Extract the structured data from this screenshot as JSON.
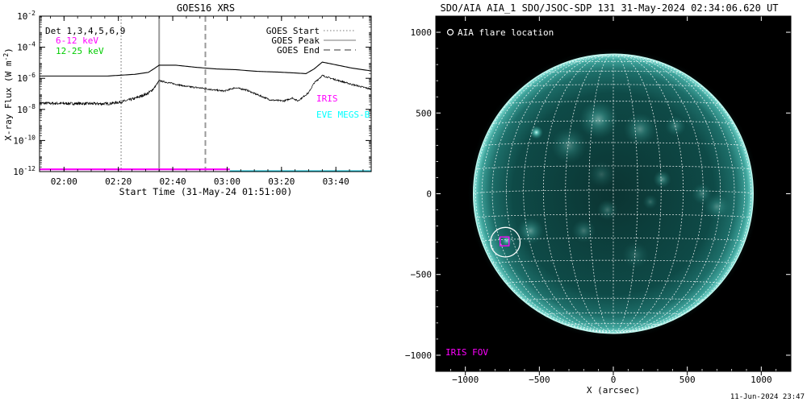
{
  "chart_data": [
    {
      "type": "line",
      "title": "GOES16 XRS",
      "xlabel": "Start Time (31-May-24 01:51:00)",
      "ylabel": "X-ray Flux (W m^-2)",
      "y_scale": "log",
      "x_unit": "minutes after 01:51:00",
      "xlim": [
        0,
        122
      ],
      "ylim": [
        1e-12,
        0.01
      ],
      "x_ticks": [
        {
          "t": 9,
          "label": "02:00"
        },
        {
          "t": 29,
          "label": "02:20"
        },
        {
          "t": 49,
          "label": "02:40"
        },
        {
          "t": 69,
          "label": "03:00"
        },
        {
          "t": 89,
          "label": "03:20"
        },
        {
          "t": 109,
          "label": "03:40"
        }
      ],
      "y_ticks": [
        {
          "v": 1e-12,
          "label": "10^-12"
        },
        {
          "v": 1e-10,
          "label": "10^-10"
        },
        {
          "v": 1e-08,
          "label": "10^-8"
        },
        {
          "v": 1e-06,
          "label": "10^-6"
        },
        {
          "v": 0.0001,
          "label": "10^-4"
        },
        {
          "v": 0.01,
          "label": "10^-2"
        }
      ],
      "det_label": "Det 1,3,4,5,6,9",
      "legend_left": [
        {
          "label": "6-12 keV",
          "color": "#ff00ff"
        },
        {
          "label": "12-25 keV",
          "color": "#00cc00"
        }
      ],
      "legend_right": [
        {
          "label": "GOES Start",
          "style": "dotted"
        },
        {
          "label": "GOES Peak",
          "style": "solid"
        },
        {
          "label": "GOES End",
          "style": "dashed"
        }
      ],
      "markers": {
        "goes_start": 30,
        "goes_peak": 44,
        "goes_end": 61
      },
      "series": [
        {
          "name": "GOES long",
          "color": "#000000",
          "points": [
            [
              0,
              1.4e-06
            ],
            [
              10,
              1.4e-06
            ],
            [
              25,
              1.4e-06
            ],
            [
              35,
              1.8e-06
            ],
            [
              40,
              2.4e-06
            ],
            [
              42,
              4e-06
            ],
            [
              44,
              7e-06
            ],
            [
              50,
              7e-06
            ],
            [
              58,
              5e-06
            ],
            [
              65,
              4e-06
            ],
            [
              72,
              3.6e-06
            ],
            [
              80,
              2.8e-06
            ],
            [
              88,
              2.5e-06
            ],
            [
              94,
              2.2e-06
            ],
            [
              98,
              2e-06
            ],
            [
              101,
              4e-06
            ],
            [
              104,
              1.1e-05
            ],
            [
              108,
              8e-06
            ],
            [
              115,
              4.5e-06
            ],
            [
              122,
              3e-06
            ]
          ]
        },
        {
          "name": "GOES short",
          "color": "#000000",
          "noise": true,
          "points": [
            [
              0,
              2.5e-08
            ],
            [
              10,
              2.4e-08
            ],
            [
              25,
              2.3e-08
            ],
            [
              30,
              3e-08
            ],
            [
              35,
              5e-08
            ],
            [
              40,
              1.1e-07
            ],
            [
              42,
              2.2e-07
            ],
            [
              44,
              7e-07
            ],
            [
              48,
              5e-07
            ],
            [
              54,
              3e-07
            ],
            [
              60,
              2.3e-07
            ],
            [
              64,
              1.8e-07
            ],
            [
              68,
              1.5e-07
            ],
            [
              72,
              2.5e-07
            ],
            [
              76,
              1.8e-07
            ],
            [
              80,
              9e-08
            ],
            [
              85,
              4e-08
            ],
            [
              90,
              3.5e-08
            ],
            [
              93,
              5.5e-08
            ],
            [
              95,
              3.5e-08
            ],
            [
              99,
              1.2e-07
            ],
            [
              101,
              5e-07
            ],
            [
              104,
              1.5e-06
            ],
            [
              108,
              9e-07
            ],
            [
              115,
              4e-07
            ],
            [
              122,
              2e-07
            ]
          ]
        },
        {
          "name": "",
          "color": "#ff00ff",
          "points": [
            [
              0,
              1.4e-12
            ],
            [
              70,
              1.4e-12
            ]
          ]
        },
        {
          "name": "",
          "color": "#00bcd4",
          "points": [
            [
              70,
              1.05e-12
            ],
            [
              122,
              1.05e-12
            ]
          ]
        }
      ],
      "overlay_labels": [
        {
          "text": "IRIS",
          "color": "#ff00ff"
        },
        {
          "text": "EVE MEGS-B",
          "color": "#00ffff"
        }
      ]
    },
    {
      "type": "image",
      "title": "SDO/AIA AIA_1 SDO/JSOC-SDP 131 31-May-2024 02:34:06.620 UT",
      "xlabel": "X (arcsec)",
      "ylabel": "",
      "xlim": [
        -1200,
        1200
      ],
      "ylim": [
        -1100,
        1100
      ],
      "x_ticks": [
        -1000,
        -500,
        0,
        500,
        1000
      ],
      "y_ticks": [
        -1000,
        -500,
        0,
        500,
        1000
      ],
      "solar_radius_arcsec": 945,
      "grid_spacing_deg": 10,
      "b0_deg": -1.5,
      "legend_text": "AIA flare location",
      "iris_fov_label": "IRIS FOV",
      "flare_location_arcsec": [
        -730,
        -300
      ],
      "iris_fov_arcsec": {
        "x": -735,
        "y": -295,
        "w": 60,
        "h": 60
      },
      "colors": {
        "disk": "#0c4543",
        "limb": "#7adcd2",
        "grid": "#ffffff",
        "iris": "#ff00ff",
        "circle": "#ffffff"
      },
      "active_regions": [
        {
          "x": -520,
          "y": 380,
          "r": 45,
          "strength": 1.0
        },
        {
          "x": -100,
          "y": 460,
          "r": 130,
          "strength": 0.5
        },
        {
          "x": 180,
          "y": 400,
          "r": 110,
          "strength": 0.4
        },
        {
          "x": -300,
          "y": 300,
          "r": 120,
          "strength": 0.35
        },
        {
          "x": 330,
          "y": 90,
          "r": 60,
          "strength": 0.45
        },
        {
          "x": -560,
          "y": -230,
          "r": 90,
          "strength": 0.45
        },
        {
          "x": -720,
          "y": -290,
          "r": 40,
          "strength": 0.8
        },
        {
          "x": -200,
          "y": -230,
          "r": 80,
          "strength": 0.3
        },
        {
          "x": -40,
          "y": -100,
          "r": 70,
          "strength": 0.3
        },
        {
          "x": 700,
          "y": -80,
          "r": 90,
          "strength": 0.35
        },
        {
          "x": 600,
          "y": 0,
          "r": 70,
          "strength": 0.3
        },
        {
          "x": 250,
          "y": -50,
          "r": 50,
          "strength": 0.25
        },
        {
          "x": -80,
          "y": 120,
          "r": 90,
          "strength": 0.2
        },
        {
          "x": 420,
          "y": 420,
          "r": 70,
          "strength": 0.35
        },
        {
          "x": 150,
          "y": -380,
          "r": 90,
          "strength": 0.2
        }
      ]
    }
  ],
  "footer_timestamp": "11-Jun-2024 23:47"
}
